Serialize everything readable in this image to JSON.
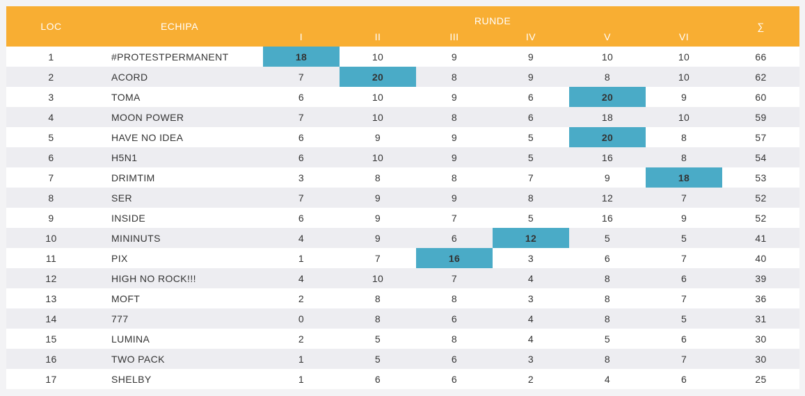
{
  "header": {
    "loc": "LOC",
    "team": "ECHIPA",
    "rounds_group": "RUNDE",
    "rounds": [
      "I",
      "II",
      "III",
      "IV",
      "V",
      "VI"
    ],
    "sum": "∑"
  },
  "highlight_color": "#4aabc7",
  "header_color": "#f8ae33",
  "rows": [
    {
      "loc": "1",
      "team": "#PROTESTPERMANENT",
      "rounds": [
        "18",
        "10",
        "9",
        "9",
        "10",
        "10"
      ],
      "sum": "66",
      "best": 0
    },
    {
      "loc": "2",
      "team": "ACORD",
      "rounds": [
        "7",
        "20",
        "8",
        "9",
        "8",
        "10"
      ],
      "sum": "62",
      "best": 1
    },
    {
      "loc": "3",
      "team": "TOMA",
      "rounds": [
        "6",
        "10",
        "9",
        "6",
        "20",
        "9"
      ],
      "sum": "60",
      "best": 4
    },
    {
      "loc": "4",
      "team": "MOON POWER",
      "rounds": [
        "7",
        "10",
        "8",
        "6",
        "18",
        "10"
      ],
      "sum": "59",
      "best": -1
    },
    {
      "loc": "5",
      "team": "HAVE NO IDEA",
      "rounds": [
        "6",
        "9",
        "9",
        "5",
        "20",
        "8"
      ],
      "sum": "57",
      "best": 4
    },
    {
      "loc": "6",
      "team": "H5N1",
      "rounds": [
        "6",
        "10",
        "9",
        "5",
        "16",
        "8"
      ],
      "sum": "54",
      "best": -1
    },
    {
      "loc": "7",
      "team": "DRIMTIM",
      "rounds": [
        "3",
        "8",
        "8",
        "7",
        "9",
        "18"
      ],
      "sum": "53",
      "best": 5
    },
    {
      "loc": "8",
      "team": "SER",
      "rounds": [
        "7",
        "9",
        "9",
        "8",
        "12",
        "7"
      ],
      "sum": "52",
      "best": -1
    },
    {
      "loc": "9",
      "team": "INSIDE",
      "rounds": [
        "6",
        "9",
        "7",
        "5",
        "16",
        "9"
      ],
      "sum": "52",
      "best": -1
    },
    {
      "loc": "10",
      "team": "MININUTS",
      "rounds": [
        "4",
        "9",
        "6",
        "12",
        "5",
        "5"
      ],
      "sum": "41",
      "best": 3
    },
    {
      "loc": "11",
      "team": "PIX",
      "rounds": [
        "1",
        "7",
        "16",
        "3",
        "6",
        "7"
      ],
      "sum": "40",
      "best": 2
    },
    {
      "loc": "12",
      "team": "HIGH NO ROCK!!!",
      "rounds": [
        "4",
        "10",
        "7",
        "4",
        "8",
        "6"
      ],
      "sum": "39",
      "best": -1
    },
    {
      "loc": "13",
      "team": "MOFT",
      "rounds": [
        "2",
        "8",
        "8",
        "3",
        "8",
        "7"
      ],
      "sum": "36",
      "best": -1
    },
    {
      "loc": "14",
      "team": "777",
      "rounds": [
        "0",
        "8",
        "6",
        "4",
        "8",
        "5"
      ],
      "sum": "31",
      "best": -1
    },
    {
      "loc": "15",
      "team": "LUMINA",
      "rounds": [
        "2",
        "5",
        "8",
        "4",
        "5",
        "6"
      ],
      "sum": "30",
      "best": -1
    },
    {
      "loc": "16",
      "team": "TWO PACK",
      "rounds": [
        "1",
        "5",
        "6",
        "3",
        "8",
        "7"
      ],
      "sum": "30",
      "best": -1
    },
    {
      "loc": "17",
      "team": "SHELBY",
      "rounds": [
        "1",
        "6",
        "6",
        "2",
        "4",
        "6"
      ],
      "sum": "25",
      "best": -1
    }
  ]
}
